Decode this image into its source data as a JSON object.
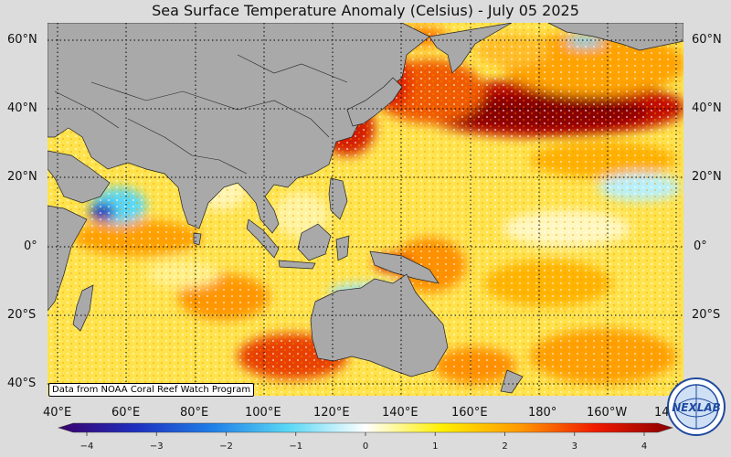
{
  "title": "Sea Surface Temperature Anomaly (Celsius) - July 05 2025",
  "lat_labels_left": [
    "60°N",
    "40°N",
    "20°N",
    "0°",
    "20°S",
    "40°S"
  ],
  "lat_labels_right": [
    "60°N",
    "40°N",
    "20°N",
    "0°",
    "20°S",
    "40°S"
  ],
  "lon_labels": [
    "40°E",
    "60°E",
    "80°E",
    "100°E",
    "120°E",
    "140°E",
    "160°E",
    "180°",
    "160°W",
    "140°W"
  ],
  "colorbar": {
    "ticks": [
      "−4",
      "−3",
      "−2",
      "−1",
      "0",
      "1",
      "2",
      "3",
      "4"
    ],
    "range": [
      -4,
      4
    ],
    "colors": [
      "#3b006b",
      "#1f2fbf",
      "#1f7fe8",
      "#5ad8f5",
      "#ffffff",
      "#ffef00",
      "#ff9a00",
      "#f01a00",
      "#8a0000"
    ]
  },
  "credit": "Data from NOAA Coral Reef Watch Program",
  "logo_text": "NEXLAB",
  "colors": {
    "land": "#a9a9a9",
    "ocean_base": "#ffe34d",
    "background": "#dcdcdc"
  }
}
